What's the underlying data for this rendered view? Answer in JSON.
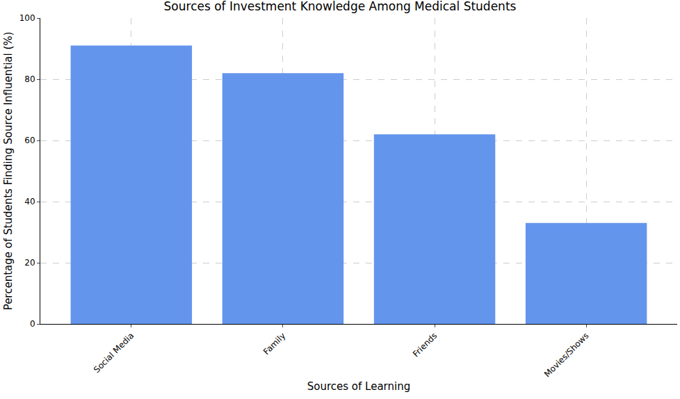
{
  "chart_data": {
    "type": "bar",
    "title": "Sources of Investment Knowledge Among Medical Students",
    "x_label": "Sources of Learning",
    "y_label": "Percentage of Students Finding Source Influential (%)",
    "categories": [
      "Social Media",
      "Family",
      "Friends",
      "Movies/Shows"
    ],
    "values": [
      91,
      82,
      62,
      33
    ],
    "color": "#6495ed",
    "ylim": [
      0,
      100
    ],
    "yticks": [
      0,
      20,
      40,
      60,
      80,
      100
    ],
    "grid": true
  }
}
